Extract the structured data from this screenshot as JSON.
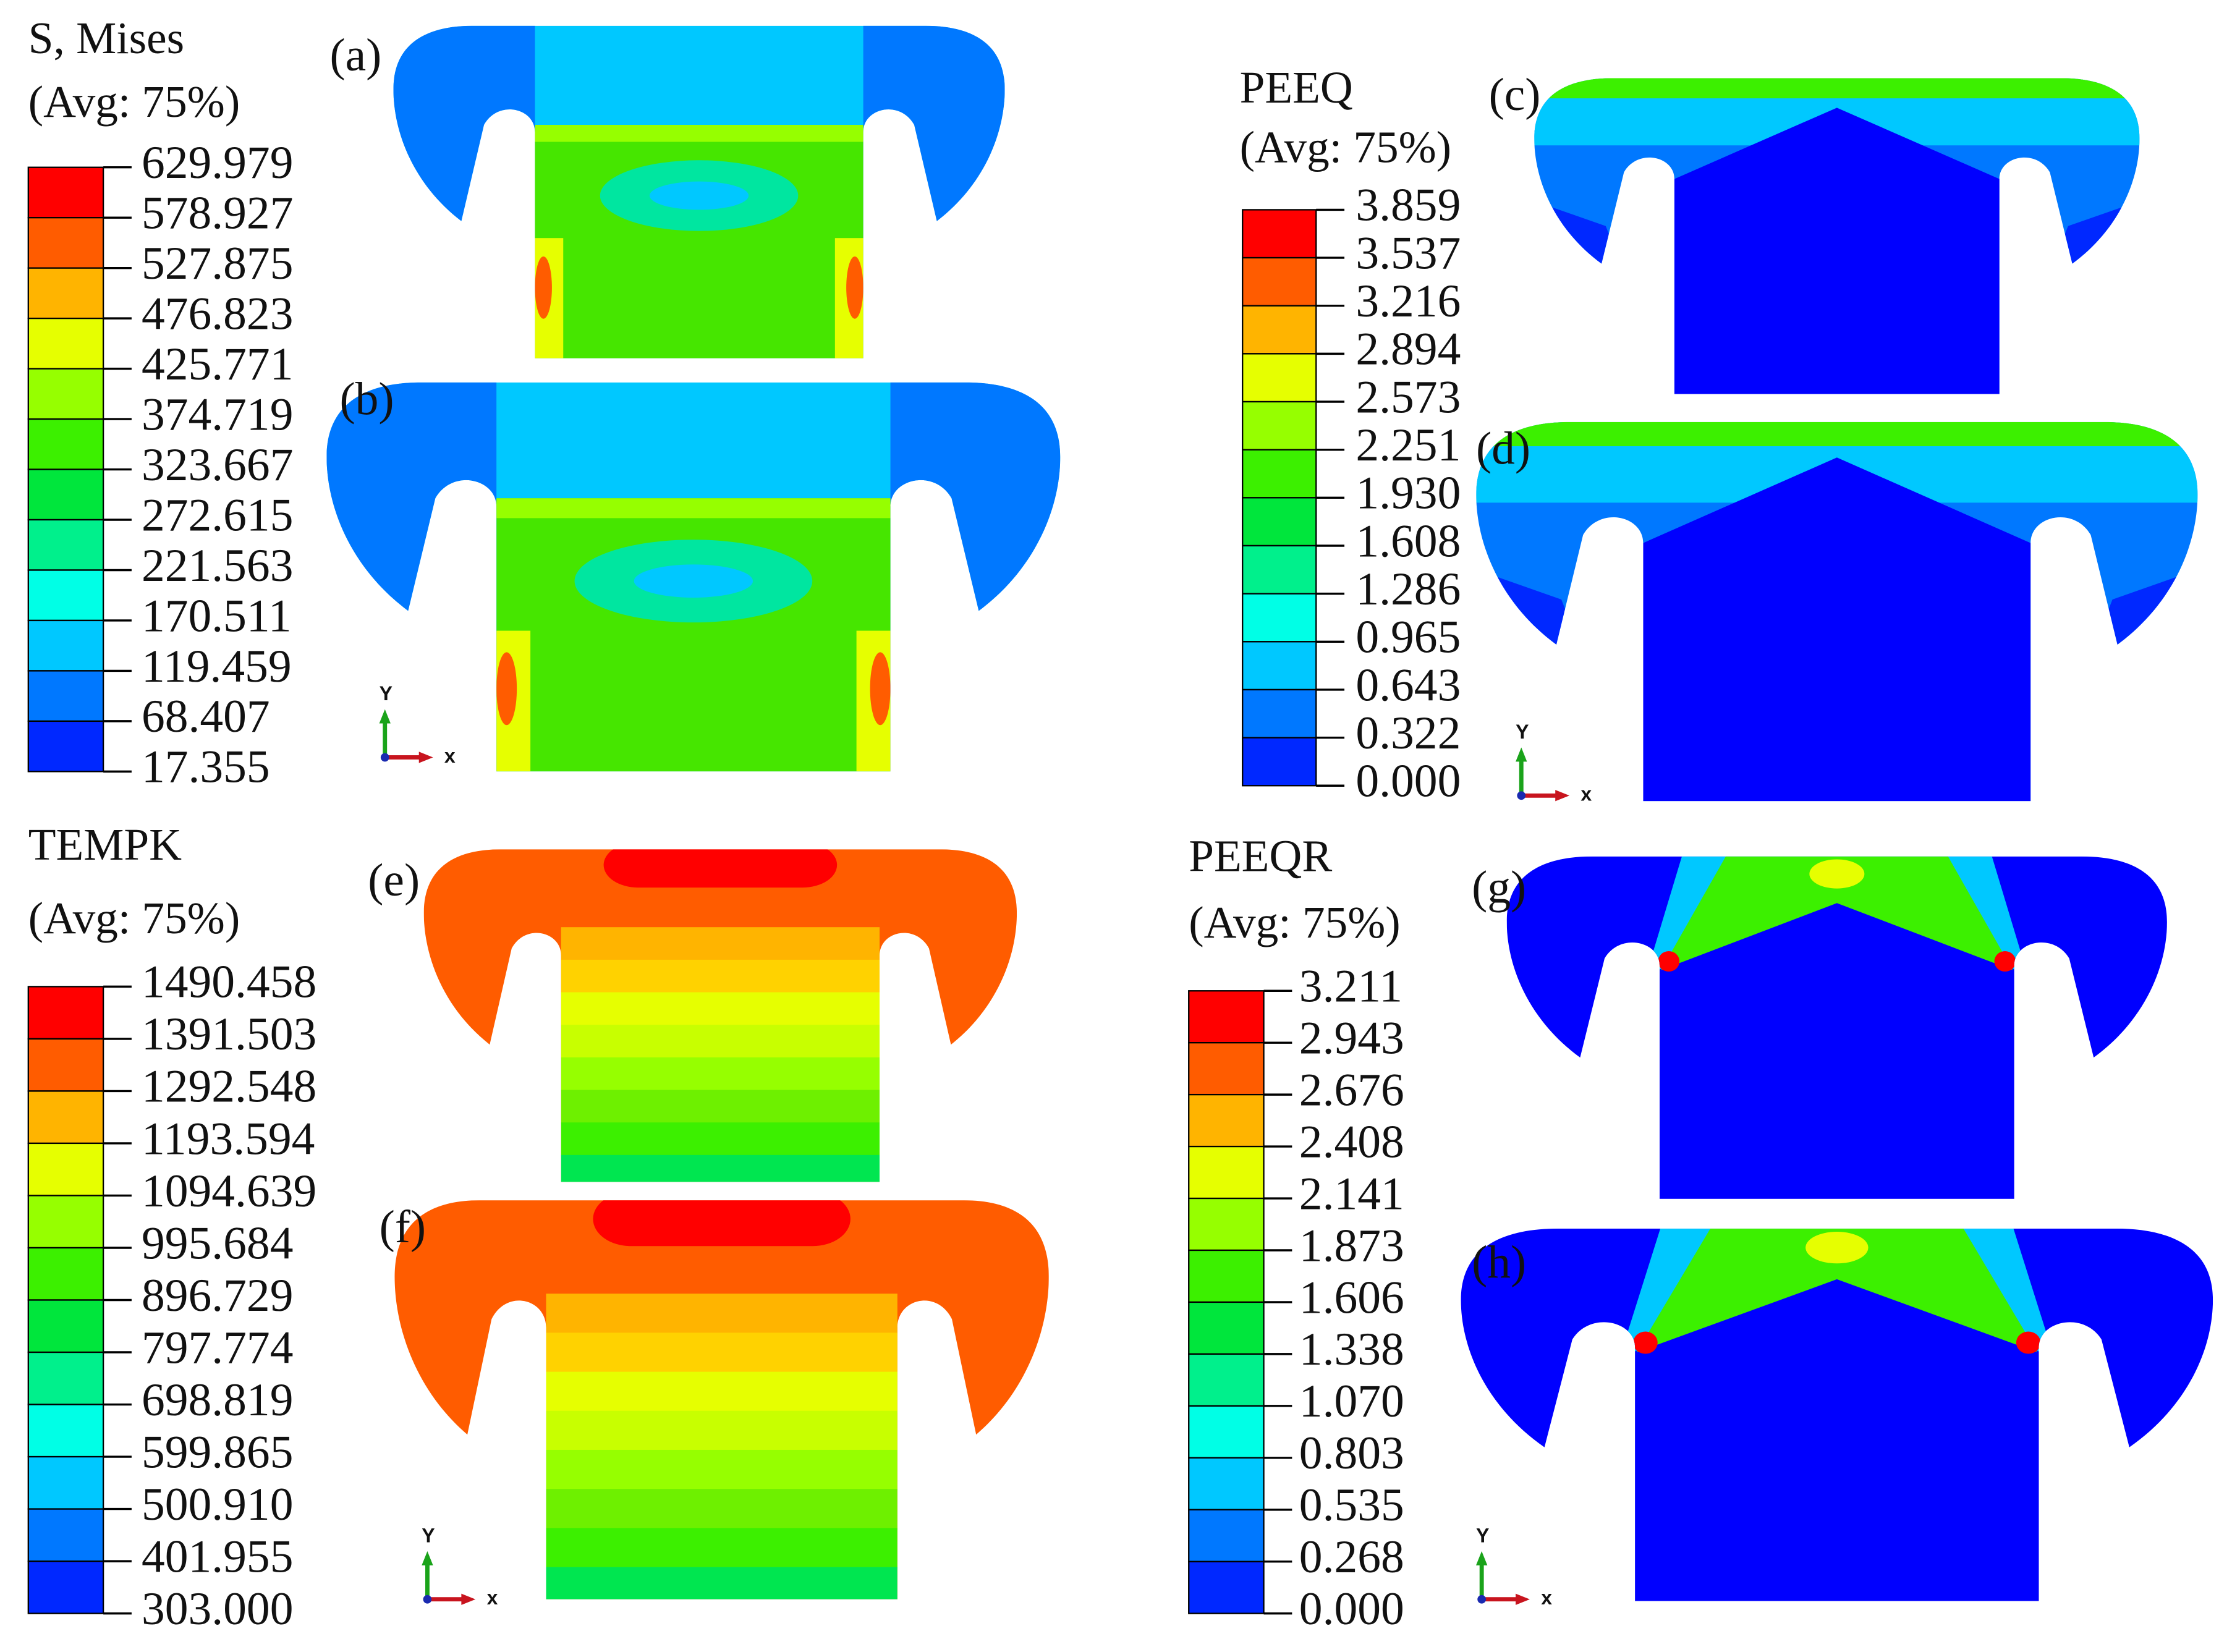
{
  "legends": [
    {
      "title": "S, Mises",
      "subtitle": "(Avg: 75%)",
      "labels": [
        "629.979",
        "578.927",
        "527.875",
        "476.823",
        "425.771",
        "374.719",
        "323.667",
        "272.615",
        "221.563",
        "170.511",
        "119.459",
        "68.407",
        "17.355"
      ]
    },
    {
      "title": "PEEQ",
      "subtitle": "(Avg: 75%)",
      "labels": [
        "3.859",
        "3.537",
        "3.216",
        "2.894",
        "2.573",
        "2.251",
        "1.930",
        "1.608",
        "1.286",
        "0.965",
        "0.643",
        "0.322",
        "0.000"
      ]
    },
    {
      "title": "TEMPK",
      "subtitle": "(Avg: 75%)",
      "labels": [
        "1490.458",
        "1391.503",
        "1292.548",
        "1193.594",
        "1094.639",
        "995.684",
        "896.729",
        "797.774",
        "698.819",
        "599.865",
        "500.910",
        "401.955",
        "303.000"
      ]
    },
    {
      "title": "PEEQR",
      "subtitle": "(Avg: 75%)",
      "labels": [
        "3.211",
        "2.943",
        "2.676",
        "2.408",
        "2.141",
        "1.873",
        "1.606",
        "1.338",
        "1.070",
        "0.803",
        "0.535",
        "0.268",
        "0.000"
      ]
    }
  ],
  "panel_labels": [
    "(a)",
    "(b)",
    "(c)",
    "(d)",
    "(e)",
    "(f)",
    "(g)",
    "(h)"
  ],
  "triad": {
    "y": "Y",
    "x": "x"
  }
}
